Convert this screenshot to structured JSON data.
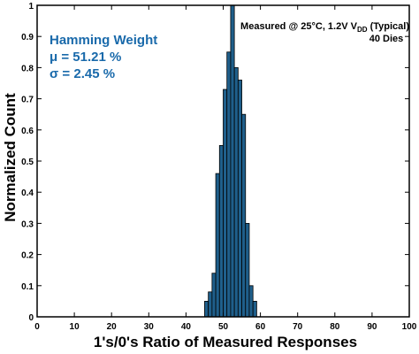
{
  "chart_data": {
    "type": "bar",
    "xlabel": "1's/0's Ratio of Measured Responses",
    "ylabel": "Normalized Count",
    "xlim": [
      0,
      100
    ],
    "ylim": [
      0,
      1
    ],
    "xticks": [
      "0",
      "10",
      "20",
      "30",
      "40",
      "50",
      "60",
      "70",
      "80",
      "90",
      "100"
    ],
    "yticks": [
      "0",
      "0.1",
      "0.2",
      "0.3",
      "0.4",
      "0.5",
      "0.6",
      "0.7",
      "0.8",
      "0.9",
      "1"
    ],
    "bin_width": 1,
    "bar_color": "#1f5f8b",
    "bar_edge_color": "#000000",
    "grid": false,
    "bins": [
      {
        "x": 45,
        "y": 0.05
      },
      {
        "x": 46,
        "y": 0.08
      },
      {
        "x": 47,
        "y": 0.14
      },
      {
        "x": 48,
        "y": 0.46
      },
      {
        "x": 49,
        "y": 0.55
      },
      {
        "x": 50,
        "y": 0.73
      },
      {
        "x": 51,
        "y": 0.85
      },
      {
        "x": 52,
        "y": 1.0
      },
      {
        "x": 53,
        "y": 0.8
      },
      {
        "x": 54,
        "y": 0.76
      },
      {
        "x": 55,
        "y": 0.65
      },
      {
        "x": 56,
        "y": 0.3
      },
      {
        "x": 57,
        "y": 0.1
      },
      {
        "x": 58,
        "y": 0.05
      }
    ]
  },
  "stats": {
    "title": "Hamming Weight",
    "mu": "μ = 51.21 %",
    "sigma": "σ = 2.45 %",
    "color": "#1a6aab"
  },
  "note": {
    "line1_prefix": "Measured @ 25°C, 1.2V V",
    "line1_sub": "DD",
    "line1_suffix": " (Typical)",
    "line2": "40 Dies"
  }
}
